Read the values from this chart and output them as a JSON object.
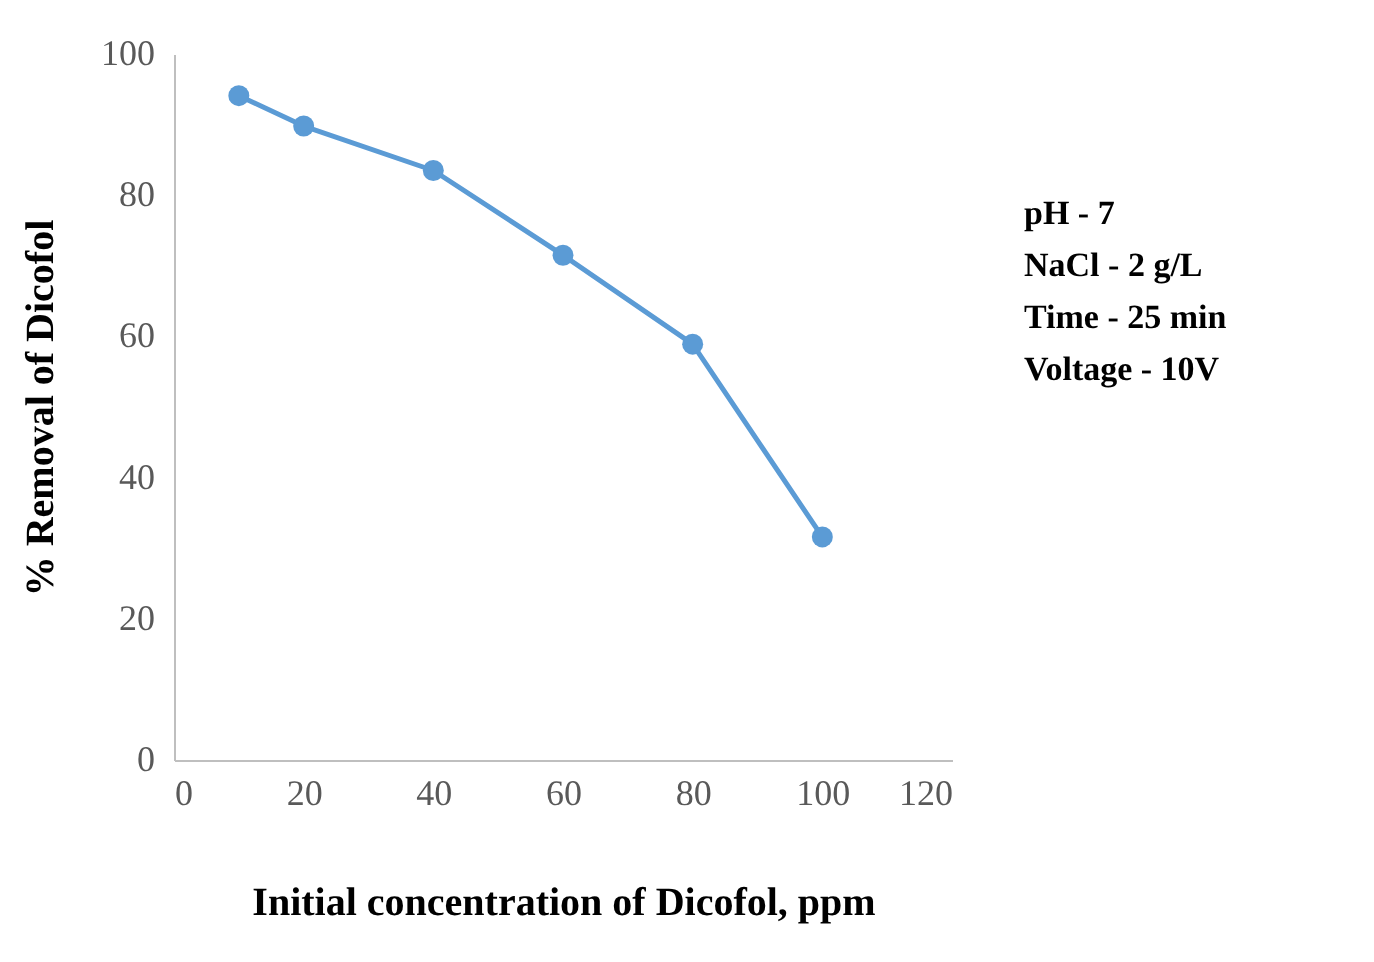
{
  "chart_data": {
    "type": "line",
    "xlabel": "Initial concentration of Dicofol, ppm",
    "ylabel": "% Removal of Dicofol",
    "x": [
      10,
      20,
      40,
      60,
      80,
      100
    ],
    "series": [
      {
        "color": "#5b9bd5",
        "values": [
          94.1,
          89.8,
          83.5,
          71.5,
          58.9,
          31.6
        ]
      }
    ],
    "xlim": [
      0,
      120
    ],
    "xticks": [
      0,
      20,
      40,
      60,
      80,
      100,
      120
    ],
    "ylim": [
      0,
      100
    ],
    "yticks": [
      0,
      20,
      40,
      60,
      80,
      100
    ],
    "grid": false,
    "marker": "circle",
    "line_style": "solid",
    "annotations": [
      "pH  - 7",
      "NaCl - 2 g/L",
      "Time - 25 min",
      "Voltage - 10V"
    ]
  }
}
